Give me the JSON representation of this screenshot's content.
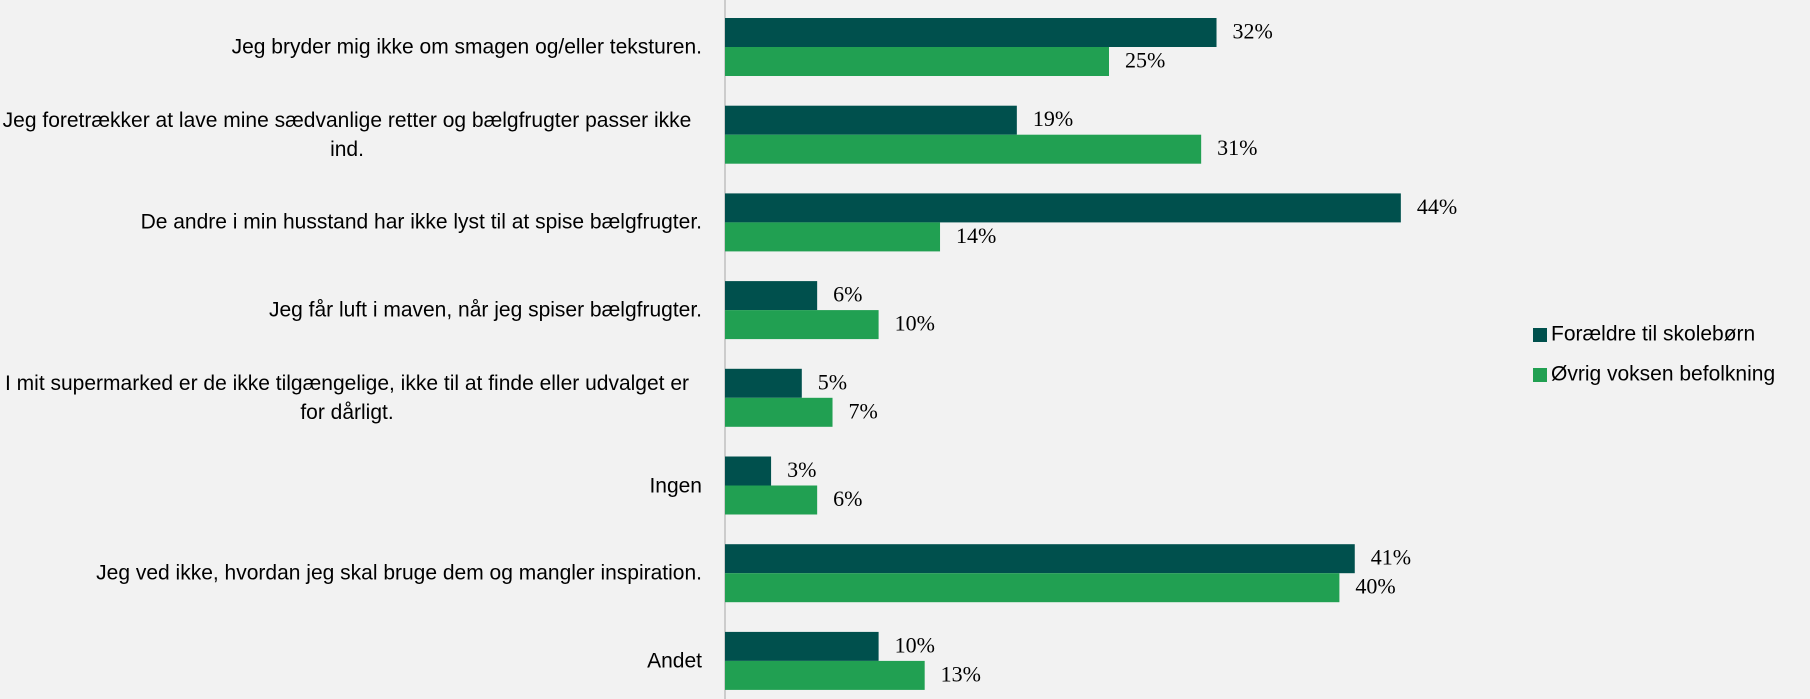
{
  "chart_data": {
    "type": "bar",
    "orientation": "horizontal",
    "categories": [
      "Jeg bryder mig ikke om smagen og/eller teksturen.",
      "Jeg foretrækker at lave mine sædvanlige retter og bælgfrugter passer ikke ind.",
      "De andre i min husstand har ikke lyst til at spise bælgfrugter.",
      "Jeg får luft i maven, når jeg spiser bælgfrugter.",
      "I mit supermarked er de ikke tilgængelige, ikke til at finde eller udvalget er for dårligt.",
      "Ingen",
      "Jeg ved ikke, hvordan jeg skal bruge dem og mangler inspiration.",
      "Andet"
    ],
    "series": [
      {
        "name": "Forældre til skolebørn",
        "color": "#00504d",
        "values": [
          32,
          19,
          44,
          6,
          5,
          3,
          41,
          10
        ],
        "value_labels": [
          "32%",
          "19%",
          "44%",
          "6%",
          "5%",
          "3%",
          "41%",
          "10%"
        ]
      },
      {
        "name": "Øvrig voksen befolkning",
        "color": "#21a052",
        "values": [
          25,
          31,
          14,
          10,
          7,
          6,
          40,
          13
        ],
        "value_labels": [
          "25%",
          "31%",
          "14%",
          "10%",
          "7%",
          "6%",
          "40%",
          "13%"
        ]
      }
    ],
    "xlim": [
      0,
      50
    ],
    "legend": "right"
  }
}
